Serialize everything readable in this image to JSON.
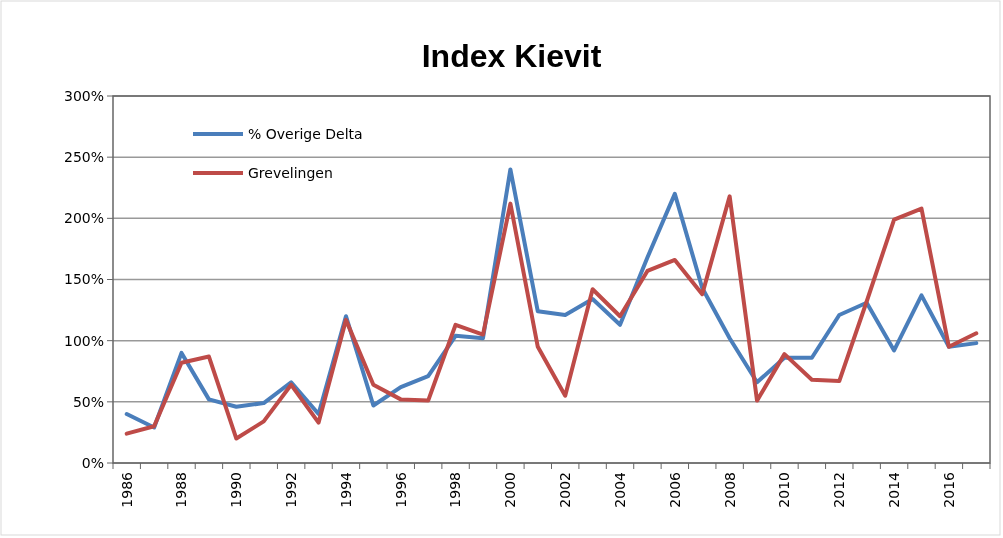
{
  "chart_data": {
    "type": "line",
    "title": "Index Kievit",
    "categories": [
      "1986",
      null,
      "1988",
      null,
      "1990",
      null,
      "1992",
      null,
      "1994",
      null,
      "1996",
      null,
      "1998",
      null,
      "2000",
      null,
      "2002",
      null,
      "2004",
      null,
      "2006",
      null,
      "2008",
      null,
      "2010",
      null,
      "2012",
      null,
      "2014",
      null,
      "2016",
      null
    ],
    "series": [
      {
        "name": "% Overige Delta",
        "color": "#4a7ebb",
        "values": [
          40,
          29,
          90,
          52,
          46,
          49,
          66,
          40,
          120,
          47,
          62,
          71,
          104,
          102,
          240,
          124,
          121,
          134,
          113,
          168,
          220,
          143,
          102,
          66,
          86,
          86,
          121,
          131,
          92,
          137,
          95,
          98
        ]
      },
      {
        "name": "Grevelingen",
        "color": "#be4b48",
        "values": [
          24,
          30,
          82,
          87,
          20,
          34,
          64,
          33,
          117,
          64,
          52,
          51,
          113,
          105,
          212,
          95,
          55,
          142,
          120,
          157,
          166,
          138,
          218,
          51,
          89,
          68,
          67,
          132,
          199,
          208,
          95,
          106
        ]
      }
    ],
    "ylim": [
      0,
      300
    ],
    "yticks": [
      {
        "value": 0,
        "label": "0%"
      },
      {
        "value": 50,
        "label": "50%"
      },
      {
        "value": 100,
        "label": "100%"
      },
      {
        "value": 150,
        "label": "150%"
      },
      {
        "value": 200,
        "label": "200%"
      },
      {
        "value": 250,
        "label": "250%"
      },
      {
        "value": 300,
        "label": "300%"
      }
    ],
    "grid": "y",
    "legend": "top left"
  }
}
